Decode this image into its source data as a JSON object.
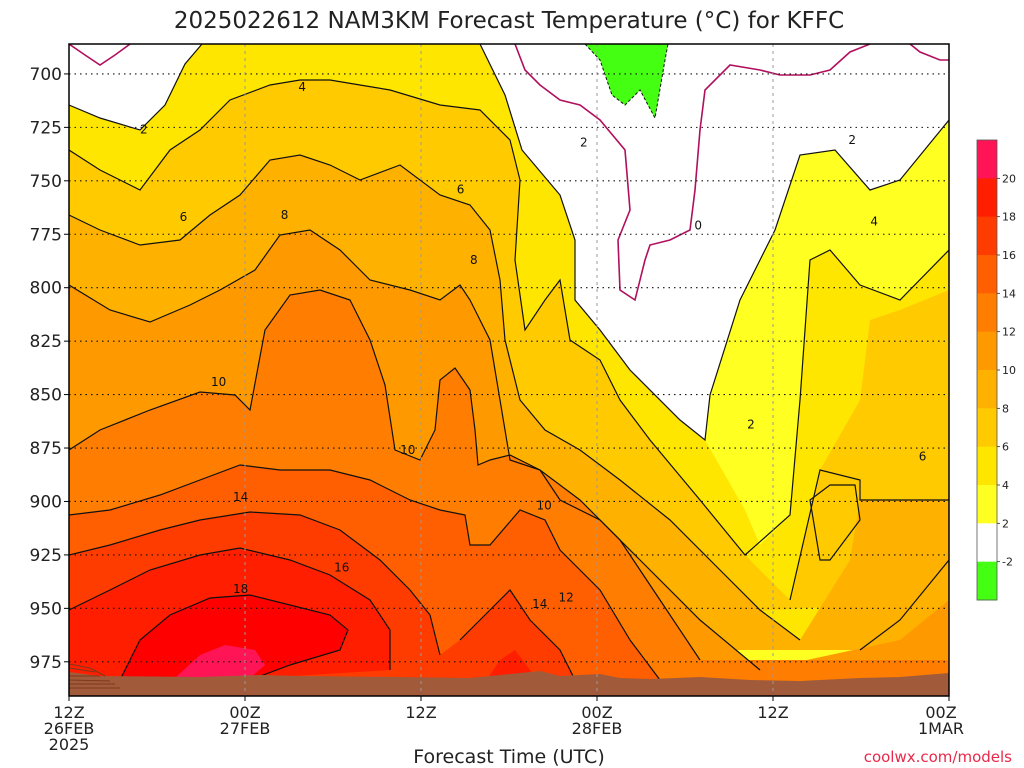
{
  "chart_data": {
    "type": "heatmap",
    "title": "2025022612 NAM3KM Forecast Temperature (°C) for KFFC",
    "xlabel": "Forecast Time (UTC)",
    "ylabel": "",
    "watermark": "coolwx.com/models",
    "y_axis": {
      "ticks": [
        700,
        725,
        750,
        775,
        800,
        825,
        850,
        875,
        900,
        925,
        950,
        975
      ],
      "range": [
        686,
        991
      ],
      "inverted": true
    },
    "x_axis": {
      "ticks": [
        {
          "line1": "12Z",
          "line2": "26FEB",
          "line3": "2025"
        },
        {
          "line1": "00Z",
          "line2": "27FEB",
          "line3": ""
        },
        {
          "line1": "12Z",
          "line2": "",
          "line3": ""
        },
        {
          "line1": "00Z",
          "line2": "28FEB",
          "line3": ""
        },
        {
          "line1": "12Z",
          "line2": "",
          "line3": ""
        },
        {
          "line1": "00Z",
          "line2": "1MAR",
          "line3": ""
        }
      ]
    },
    "grid": true,
    "colorbar": {
      "labels": [
        "20",
        "18",
        "16",
        "14",
        "12",
        "10",
        "8",
        "6",
        "4",
        "2",
        "-2"
      ],
      "colors": [
        "#ff1456",
        "#ff1e00",
        "#ff3c00",
        "#ff5f00",
        "#ff7d00",
        "#ff9900",
        "#ffb100",
        "#ffcb00",
        "#ffe600",
        "#ffff22",
        "#ffffff",
        "#44ff11"
      ]
    },
    "contour_labels": [
      {
        "text": "2",
        "t": 8.5,
        "p": 726
      },
      {
        "text": "4",
        "t": 26.5,
        "p": 706
      },
      {
        "text": "6",
        "t": 13.0,
        "p": 767
      },
      {
        "text": "8",
        "t": 24.5,
        "p": 766
      },
      {
        "text": "10",
        "t": 17.0,
        "p": 844
      },
      {
        "text": "14",
        "t": 19.5,
        "p": 898
      },
      {
        "text": "16",
        "t": 31.0,
        "p": 931
      },
      {
        "text": "18",
        "t": 19.5,
        "p": 941
      },
      {
        "text": "6",
        "t": 44.5,
        "p": 754
      },
      {
        "text": "8",
        "t": 46.0,
        "p": 787
      },
      {
        "text": "10",
        "t": 38.5,
        "p": 876
      },
      {
        "text": "10",
        "t": 54.0,
        "p": 902
      },
      {
        "text": "12",
        "t": 56.5,
        "p": 945
      },
      {
        "text": "14",
        "t": 53.5,
        "p": 948
      },
      {
        "text": "2",
        "t": 58.5,
        "p": 732
      },
      {
        "text": "0",
        "t": 71.5,
        "p": 771
      },
      {
        "text": "2",
        "t": 77.5,
        "p": 864
      },
      {
        "text": "2",
        "t": 89.0,
        "p": 731
      },
      {
        "text": "4",
        "t": 91.5,
        "p": 769
      },
      {
        "text": "6",
        "t": 97.0,
        "p": 879
      }
    ],
    "temperature_field_notes": "Warmest (>18 C) near surface around 00Z 27FEB; isotherms descend toward 28FEB; freezing (0 C) air aloft around 12Z-18Z 28FEB."
  }
}
